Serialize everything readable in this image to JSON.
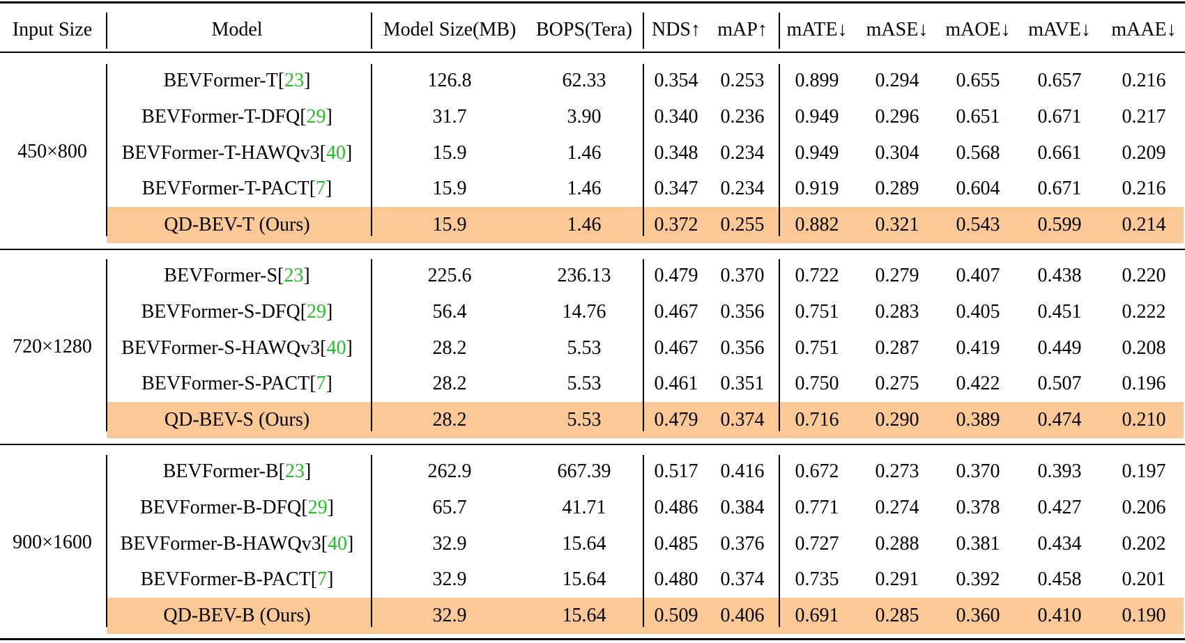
{
  "header": {
    "input_size": "Input Size",
    "model": "Model",
    "model_size": "Model Size(MB)",
    "bops": "BOPS(Tera)",
    "nds": "NDS↑",
    "map": "mAP↑",
    "mate": "mATE↓",
    "mase": "mASE↓",
    "maoe": "mAOE↓",
    "mave": "mAVE↓",
    "maae": "mAAE↓"
  },
  "groups": [
    {
      "input_size": "450×800",
      "rows": [
        {
          "model": "BEVFormer-T",
          "ref": "23",
          "size": "126.8",
          "bops": "62.33",
          "nds": "0.354",
          "map": "0.253",
          "mate": "0.899",
          "mase": "0.294",
          "maoe": "0.655",
          "mave": "0.657",
          "maae": "0.216"
        },
        {
          "model": "BEVFormer-T-DFQ",
          "ref": "29",
          "size": "31.7",
          "bops": "3.90",
          "nds": "0.340",
          "map": "0.236",
          "mate": "0.949",
          "mase": "0.296",
          "maoe": "0.651",
          "mave": "0.671",
          "maae": "0.217"
        },
        {
          "model": "BEVFormer-T-HAWQv3",
          "ref": "40",
          "size": "15.9",
          "bops": "1.46",
          "nds": "0.348",
          "map": "0.234",
          "mate": "0.949",
          "mase": "0.304",
          "maoe": "0.568",
          "mave": "0.661",
          "maae": "0.209"
        },
        {
          "model": "BEVFormer-T-PACT",
          "ref": "7",
          "size": "15.9",
          "bops": "1.46",
          "nds": "0.347",
          "map": "0.234",
          "mate": "0.919",
          "mase": "0.289",
          "maoe": "0.604",
          "mave": "0.671",
          "maae": "0.216"
        },
        {
          "model": "QD-BEV-T (Ours)",
          "size": "15.9",
          "bops": "1.46",
          "nds": "0.372",
          "map": "0.255",
          "mate": "0.882",
          "mase": "0.321",
          "maoe": "0.543",
          "mave": "0.599",
          "maae": "0.214"
        }
      ]
    },
    {
      "input_size": "720×1280",
      "rows": [
        {
          "model": "BEVFormer-S",
          "ref": "23",
          "size": "225.6",
          "bops": "236.13",
          "nds": "0.479",
          "map": "0.370",
          "mate": "0.722",
          "mase": "0.279",
          "maoe": "0.407",
          "mave": "0.438",
          "maae": "0.220"
        },
        {
          "model": "BEVFormer-S-DFQ",
          "ref": "29",
          "size": "56.4",
          "bops": "14.76",
          "nds": "0.467",
          "map": "0.356",
          "mate": "0.751",
          "mase": "0.283",
          "maoe": "0.405",
          "mave": "0.451",
          "maae": "0.222"
        },
        {
          "model": "BEVFormer-S-HAWQv3",
          "ref": "40",
          "size": "28.2",
          "bops": "5.53",
          "nds": "0.467",
          "map": "0.356",
          "mate": "0.751",
          "mase": "0.287",
          "maoe": "0.419",
          "mave": "0.449",
          "maae": "0.208"
        },
        {
          "model": "BEVFormer-S-PACT",
          "ref": "7",
          "size": "28.2",
          "bops": "5.53",
          "nds": "0.461",
          "map": "0.351",
          "mate": "0.750",
          "mase": "0.275",
          "maoe": "0.422",
          "mave": "0.507",
          "maae": "0.196"
        },
        {
          "model": "QD-BEV-S (Ours)",
          "size": "28.2",
          "bops": "5.53",
          "nds": "0.479",
          "map": "0.374",
          "mate": "0.716",
          "mase": "0.290",
          "maoe": "0.389",
          "mave": "0.474",
          "maae": "0.210"
        }
      ]
    },
    {
      "input_size": "900×1600",
      "rows": [
        {
          "model": "BEVFormer-B",
          "ref": "23",
          "size": "262.9",
          "bops": "667.39",
          "nds": "0.517",
          "map": "0.416",
          "mate": "0.672",
          "mase": "0.273",
          "maoe": "0.370",
          "mave": "0.393",
          "maae": "0.197"
        },
        {
          "model": "BEVFormer-B-DFQ",
          "ref": "29",
          "size": "65.7",
          "bops": "41.71",
          "nds": "0.486",
          "map": "0.384",
          "mate": "0.771",
          "mase": "0.274",
          "maoe": "0.378",
          "mave": "0.427",
          "maae": "0.206"
        },
        {
          "model": "BEVFormer-B-HAWQv3",
          "ref": "40",
          "size": "32.9",
          "bops": "15.64",
          "nds": "0.485",
          "map": "0.376",
          "mate": "0.727",
          "mase": "0.288",
          "maoe": "0.381",
          "mave": "0.434",
          "maae": "0.202"
        },
        {
          "model": "BEVFormer-B-PACT",
          "ref": "7",
          "size": "32.9",
          "bops": "15.64",
          "nds": "0.480",
          "map": "0.374",
          "mate": "0.735",
          "mase": "0.291",
          "maoe": "0.392",
          "mave": "0.458",
          "maae": "0.201"
        },
        {
          "model": "QD-BEV-B (Ours)",
          "size": "32.9",
          "bops": "15.64",
          "nds": "0.509",
          "map": "0.406",
          "mate": "0.691",
          "mase": "0.285",
          "maoe": "0.360",
          "mave": "0.410",
          "maae": "0.190"
        }
      ]
    }
  ],
  "colors": {
    "highlight_row": "#FCC896",
    "citation_link": "#22C122",
    "rule": "#000000"
  }
}
